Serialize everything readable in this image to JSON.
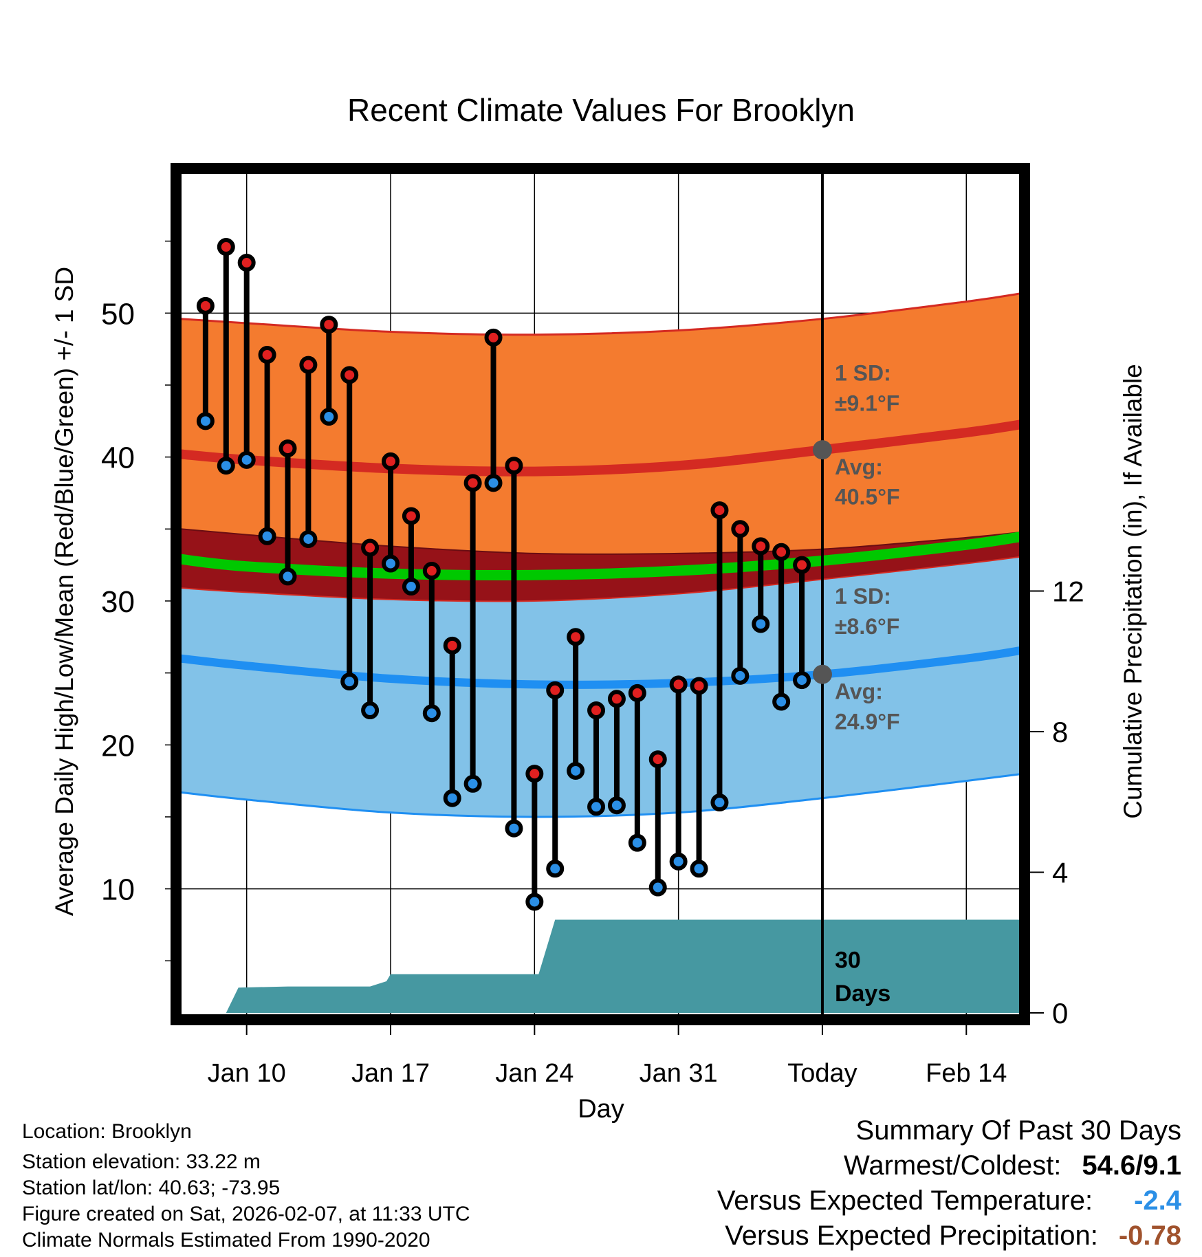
{
  "chart_data": {
    "type": "line",
    "title": "Recent Climate Values For Brooklyn",
    "xlabel": "Day",
    "ylabel_left": "Average Daily High/Low/Mean (Red/Blue/Green) +/- 1 SD",
    "ylabel_right": "Cumulative Precipitation (in), If Available",
    "xlim": [
      6.8,
      47.8
    ],
    "ylim": [
      1,
      60
    ],
    "precip_ylim": [
      0,
      24
    ],
    "x_ticks": [
      {
        "day": 10,
        "label": "Jan 10"
      },
      {
        "day": 17,
        "label": "Jan 17"
      },
      {
        "day": 24,
        "label": "Jan 24"
      },
      {
        "day": 31,
        "label": "Jan 31"
      },
      {
        "day": 38,
        "label": "Today"
      },
      {
        "day": 45,
        "label": "Feb 14"
      }
    ],
    "y_ticks": [
      10,
      20,
      30,
      40,
      50
    ],
    "precip_ticks": [
      0,
      4,
      8,
      12
    ],
    "today_day": 38,
    "normals": {
      "days": [
        6.8,
        10,
        17,
        24,
        31,
        38,
        45,
        47.8
      ],
      "high_mean": [
        40.2,
        39.8,
        39.2,
        39.0,
        39.4,
        40.5,
        41.7,
        42.3
      ],
      "high_upper": [
        49.6,
        49.3,
        48.7,
        48.5,
        48.8,
        49.6,
        50.8,
        51.4
      ],
      "high_lower": [
        30.9,
        30.6,
        30.1,
        30.0,
        30.5,
        31.5,
        32.6,
        33.1
      ],
      "mean_mean": [
        32.9,
        32.4,
        31.9,
        31.8,
        32.1,
        32.8,
        33.9,
        34.5
      ],
      "low_mean": [
        26.0,
        25.5,
        24.6,
        24.2,
        24.3,
        24.9,
        26.0,
        26.6
      ],
      "low_upper": [
        35.0,
        34.6,
        33.8,
        33.3,
        33.3,
        33.6,
        34.4,
        34.8
      ],
      "low_lower": [
        16.7,
        16.2,
        15.3,
        15.0,
        15.3,
        16.3,
        17.5,
        18.0
      ]
    },
    "annotations": {
      "high_sd_label": "1 SD:",
      "high_sd_value": "±9.1°F",
      "high_avg_label": "Avg:",
      "high_avg_value": "40.5°F",
      "high_avg": 40.5,
      "low_sd_label": "1 SD:",
      "low_sd_value": "±8.6°F",
      "low_avg_label": "Avg:",
      "low_avg_value": "24.9°F",
      "low_avg": 24.9,
      "days_label_1": "30",
      "days_label_2": "Days"
    },
    "series": [
      {
        "name": "High",
        "color": "#e02020",
        "values": [
          50.5,
          54.6,
          53.5,
          47.1,
          40.6,
          46.4,
          49.2,
          45.7,
          33.7,
          39.7,
          35.9,
          32.1,
          26.9,
          38.2,
          48.3,
          39.4,
          18.0,
          23.8,
          27.5,
          22.4,
          23.2,
          23.6,
          19.0,
          24.2,
          24.1,
          36.3,
          35.0,
          33.8,
          33.4,
          32.5
        ]
      },
      {
        "name": "Low",
        "color": "#2b8fe6",
        "values": [
          42.5,
          39.4,
          39.8,
          34.5,
          31.7,
          34.3,
          42.8,
          24.4,
          22.4,
          32.6,
          31.0,
          22.2,
          16.3,
          17.3,
          38.2,
          14.2,
          9.1,
          11.4,
          18.2,
          15.7,
          15.8,
          13.2,
          10.1,
          11.9,
          11.4,
          16.0,
          24.8,
          28.4,
          23.0,
          24.5
        ]
      }
    ],
    "obs_days": [
      8,
      9,
      10,
      11,
      12,
      13,
      14,
      15,
      16,
      17,
      18,
      19,
      20,
      21,
      22,
      23,
      24,
      25,
      26,
      27,
      28,
      29,
      30,
      31,
      32,
      33,
      34,
      35,
      36,
      37
    ],
    "precipitation": {
      "days": [
        6.8,
        9.0,
        9.6,
        12,
        14,
        16.0,
        16.8,
        17,
        18,
        19,
        20,
        22,
        23,
        24.2,
        25.0,
        26,
        30,
        34,
        38,
        45,
        47.8
      ],
      "values": [
        0,
        0,
        0.72,
        0.75,
        0.75,
        0.75,
        0.9,
        1.1,
        1.1,
        1.1,
        1.1,
        1.1,
        1.1,
        1.1,
        2.65,
        2.65,
        2.65,
        2.65,
        2.65,
        2.65,
        2.65
      ]
    }
  },
  "info": {
    "location": "Location: Brooklyn",
    "elevation": "Station elevation: 33.22 m",
    "latlon": "Station lat/lon: 40.63; -73.95",
    "created": "Figure created on Sat, 2026-02-07, at 11:33 UTC",
    "normals": "Climate Normals Estimated From 1990-2020"
  },
  "summary": {
    "title": "Summary Of Past 30 Days",
    "warmest_label": "Warmest/Coldest:",
    "warmest_value": "54.6/9.1",
    "temp_label": "Versus Expected Temperature:",
    "temp_value": "-2.4",
    "precip_label": "Versus Expected Precipitation:",
    "precip_value": "-0.78"
  },
  "colors": {
    "high_band": "#f47b2f",
    "high_line": "#d42a22",
    "low_band": "#82c2e8",
    "low_line": "#1f8ff2",
    "mean_line": "#00c800",
    "overlap": "#961218",
    "precip": "#4698a1",
    "annotation": "#555555",
    "temp_summary": "#2b8fe6",
    "precip_summary": "#a0522d"
  }
}
